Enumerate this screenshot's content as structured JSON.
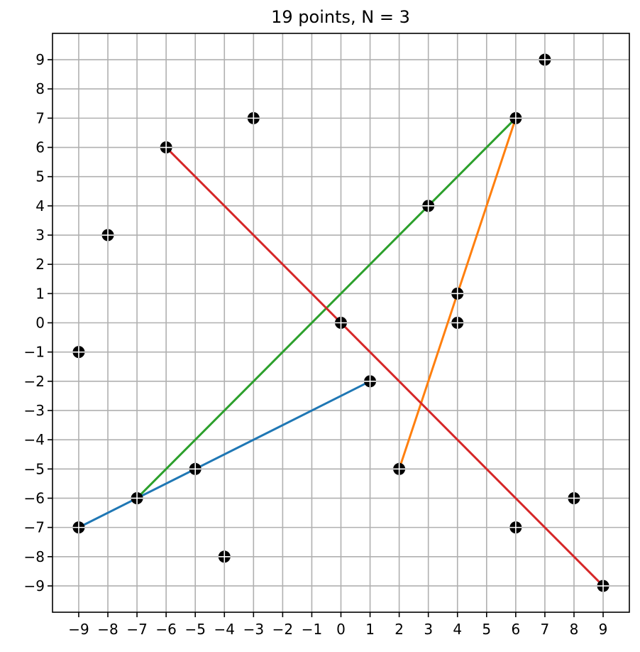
{
  "chart_data": {
    "type": "scatter",
    "title": "19 points, N = 3",
    "xlabel": "",
    "ylabel": "",
    "xlim": [
      -9.9,
      9.9
    ],
    "ylim": [
      -9.9,
      9.9
    ],
    "xticks": [
      -9,
      -8,
      -7,
      -6,
      -5,
      -4,
      -3,
      -2,
      -1,
      0,
      1,
      2,
      3,
      4,
      5,
      6,
      7,
      8,
      9
    ],
    "yticks": [
      -9,
      -8,
      -7,
      -6,
      -5,
      -4,
      -3,
      -2,
      -1,
      0,
      1,
      2,
      3,
      4,
      5,
      6,
      7,
      8,
      9
    ],
    "grid": true,
    "points": [
      {
        "x": 7,
        "y": 9
      },
      {
        "x": -3,
        "y": 7
      },
      {
        "x": 6,
        "y": 7
      },
      {
        "x": -6,
        "y": 6
      },
      {
        "x": 3,
        "y": 4
      },
      {
        "x": -8,
        "y": 3
      },
      {
        "x": 4,
        "y": 1
      },
      {
        "x": 0,
        "y": 0
      },
      {
        "x": 4,
        "y": 0
      },
      {
        "x": -9,
        "y": -1
      },
      {
        "x": 1,
        "y": -2
      },
      {
        "x": -5,
        "y": -5
      },
      {
        "x": 2,
        "y": -5
      },
      {
        "x": -7,
        "y": -6
      },
      {
        "x": 8,
        "y": -6
      },
      {
        "x": -9,
        "y": -7
      },
      {
        "x": 6,
        "y": -7
      },
      {
        "x": -4,
        "y": -8
      },
      {
        "x": 9,
        "y": -9
      }
    ],
    "point_color": "#000000",
    "lines": [
      {
        "color": "#1f77b4",
        "x": [
          -9,
          -7,
          -5,
          1
        ],
        "y": [
          -7,
          -6,
          -5,
          -2
        ]
      },
      {
        "color": "#ff7f0e",
        "x": [
          2,
          4,
          6
        ],
        "y": [
          -5,
          1,
          7
        ]
      },
      {
        "color": "#2ca02c",
        "x": [
          -7,
          3,
          6
        ],
        "y": [
          -6,
          4,
          7
        ]
      },
      {
        "color": "#d62728",
        "x": [
          -6,
          0,
          9
        ],
        "y": [
          6,
          0,
          -9
        ]
      }
    ]
  }
}
